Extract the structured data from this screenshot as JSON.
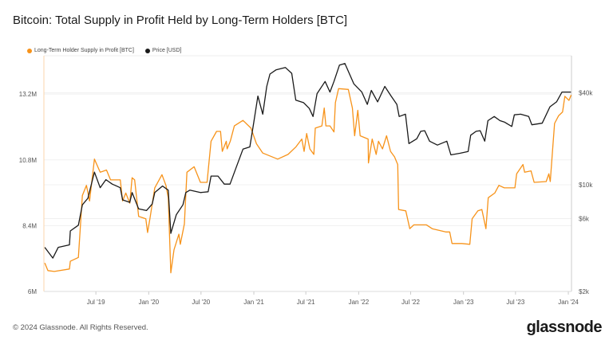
{
  "title": "Bitcoin: Total Supply in Profit Held by Long-Term Holders [BTC]",
  "footer": "© 2024 Glassnode. All Rights Reserved.",
  "logo_text": "glassnode",
  "chart_data": {
    "type": "line",
    "title": "Bitcoin: Total Supply in Profit Held by Long-Term Holders [BTC]",
    "legend_position": "top-left",
    "grid": true,
    "x_range": [
      "2019-01-01",
      "2024-01-12"
    ],
    "x_ticks": [
      {
        "date": "2019-07-01",
        "label": "Jul '19"
      },
      {
        "date": "2020-01-01",
        "label": "Jan '20"
      },
      {
        "date": "2020-07-01",
        "label": "Jul '20"
      },
      {
        "date": "2021-01-01",
        "label": "Jan '21"
      },
      {
        "date": "2021-07-01",
        "label": "Jul '21"
      },
      {
        "date": "2022-01-01",
        "label": "Jan '22"
      },
      {
        "date": "2022-07-01",
        "label": "Jul '22"
      },
      {
        "date": "2023-01-01",
        "label": "Jan '23"
      },
      {
        "date": "2023-07-01",
        "label": "Jul '23"
      },
      {
        "date": "2024-01-01",
        "label": "Jan '24"
      }
    ],
    "y_left": {
      "scale": "linear",
      "range": [
        6000000,
        14600000
      ],
      "ticks": [
        {
          "value": 6000000,
          "label": "6M"
        },
        {
          "value": 8400000,
          "label": "8.4M"
        },
        {
          "value": 10800000,
          "label": "10.8M"
        },
        {
          "value": 13200000,
          "label": "13.2M"
        }
      ]
    },
    "y_right": {
      "scale": "log",
      "range": [
        2000,
        70000
      ],
      "ticks": [
        {
          "value": 2000,
          "label": "$2k"
        },
        {
          "value": 6000,
          "label": "$6k"
        },
        {
          "value": 10000,
          "label": "$10k"
        },
        {
          "value": 40000,
          "label": "$40k"
        }
      ]
    },
    "series": [
      {
        "name": "Long-Term Holder Supply in Profit [BTC]",
        "axis": "left",
        "color": "#f7931a",
        "points": [
          [
            "2019-01-04",
            7.04
          ],
          [
            "2019-01-15",
            6.76
          ],
          [
            "2019-02-06",
            6.73
          ],
          [
            "2019-03-31",
            6.82
          ],
          [
            "2019-04-03",
            7.1
          ],
          [
            "2019-05-01",
            7.24
          ],
          [
            "2019-05-15",
            9.5
          ],
          [
            "2019-05-29",
            9.87
          ],
          [
            "2019-06-09",
            9.3
          ],
          [
            "2019-06-26",
            10.83
          ],
          [
            "2019-07-16",
            10.35
          ],
          [
            "2019-08-07",
            10.43
          ],
          [
            "2019-08-21",
            10.07
          ],
          [
            "2019-09-24",
            10.07
          ],
          [
            "2019-10-02",
            9.3
          ],
          [
            "2019-10-13",
            9.59
          ],
          [
            "2019-10-27",
            9.22
          ],
          [
            "2019-11-04",
            10.15
          ],
          [
            "2019-11-13",
            10.07
          ],
          [
            "2019-11-27",
            8.74
          ],
          [
            "2019-12-22",
            8.65
          ],
          [
            "2019-12-28",
            8.15
          ],
          [
            "2020-01-05",
            8.65
          ],
          [
            "2020-01-22",
            9.78
          ],
          [
            "2020-02-16",
            10.26
          ],
          [
            "2020-03-01",
            9.87
          ],
          [
            "2020-03-09",
            9.42
          ],
          [
            "2020-03-18",
            6.68
          ],
          [
            "2020-03-29",
            7.52
          ],
          [
            "2020-04-15",
            8.09
          ],
          [
            "2020-04-20",
            7.72
          ],
          [
            "2020-05-04",
            8.46
          ],
          [
            "2020-05-13",
            10.35
          ],
          [
            "2020-06-07",
            10.55
          ],
          [
            "2020-06-29",
            9.98
          ],
          [
            "2020-07-22",
            9.98
          ],
          [
            "2020-08-05",
            11.48
          ],
          [
            "2020-08-24",
            11.84
          ],
          [
            "2020-09-07",
            11.84
          ],
          [
            "2020-09-13",
            11.11
          ],
          [
            "2020-09-27",
            11.48
          ],
          [
            "2020-09-30",
            11.2
          ],
          [
            "2020-10-11",
            11.48
          ],
          [
            "2020-10-25",
            12.04
          ],
          [
            "2020-11-24",
            12.24
          ],
          [
            "2020-12-22",
            11.96
          ],
          [
            "2021-01-10",
            11.39
          ],
          [
            "2021-02-01",
            11.05
          ],
          [
            "2021-03-25",
            10.83
          ],
          [
            "2021-04-30",
            11.0
          ],
          [
            "2021-05-28",
            11.28
          ],
          [
            "2021-06-17",
            11.56
          ],
          [
            "2021-06-25",
            11.11
          ],
          [
            "2021-07-04",
            11.76
          ],
          [
            "2021-07-15",
            11.2
          ],
          [
            "2021-07-29",
            11.0
          ],
          [
            "2021-08-03",
            11.96
          ],
          [
            "2021-08-26",
            12.04
          ],
          [
            "2021-09-03",
            12.69
          ],
          [
            "2021-09-09",
            12.04
          ],
          [
            "2021-09-23",
            12.04
          ],
          [
            "2021-10-07",
            11.82
          ],
          [
            "2021-10-12",
            12.89
          ],
          [
            "2021-10-23",
            13.4
          ],
          [
            "2021-11-26",
            13.37
          ],
          [
            "2021-12-10",
            12.69
          ],
          [
            "2021-12-18",
            11.68
          ],
          [
            "2021-12-29",
            12.61
          ],
          [
            "2022-01-06",
            11.68
          ],
          [
            "2022-02-03",
            11.56
          ],
          [
            "2022-02-04",
            10.69
          ],
          [
            "2022-02-17",
            11.56
          ],
          [
            "2022-03-03",
            11.0
          ],
          [
            "2022-03-11",
            11.48
          ],
          [
            "2022-03-25",
            11.2
          ],
          [
            "2022-04-08",
            11.68
          ],
          [
            "2022-04-22",
            11.11
          ],
          [
            "2022-05-06",
            10.91
          ],
          [
            "2022-05-17",
            10.63
          ],
          [
            "2022-05-20",
            8.99
          ],
          [
            "2022-06-14",
            8.94
          ],
          [
            "2022-06-28",
            8.29
          ],
          [
            "2022-07-12",
            8.43
          ],
          [
            "2022-08-25",
            8.43
          ],
          [
            "2022-09-14",
            8.29
          ],
          [
            "2022-10-31",
            8.17
          ],
          [
            "2022-11-14",
            8.17
          ],
          [
            "2022-11-22",
            7.75
          ],
          [
            "2022-12-26",
            7.75
          ],
          [
            "2023-01-23",
            7.72
          ],
          [
            "2023-01-31",
            8.65
          ],
          [
            "2023-02-20",
            8.94
          ],
          [
            "2023-03-06",
            8.99
          ],
          [
            "2023-03-20",
            8.29
          ],
          [
            "2023-03-28",
            9.42
          ],
          [
            "2023-04-20",
            9.59
          ],
          [
            "2023-05-04",
            9.87
          ],
          [
            "2023-05-23",
            9.78
          ],
          [
            "2023-06-29",
            9.78
          ],
          [
            "2023-07-05",
            10.29
          ],
          [
            "2023-07-27",
            10.63
          ],
          [
            "2023-08-02",
            10.35
          ],
          [
            "2023-08-24",
            10.4
          ],
          [
            "2023-09-04",
            9.98
          ],
          [
            "2023-10-16",
            10.01
          ],
          [
            "2023-10-25",
            10.29
          ],
          [
            "2023-10-30",
            10.01
          ],
          [
            "2023-11-08",
            11.28
          ],
          [
            "2023-11-14",
            12.13
          ],
          [
            "2023-11-28",
            12.41
          ],
          [
            "2023-12-12",
            12.55
          ],
          [
            "2023-12-20",
            13.12
          ],
          [
            "2024-01-03",
            12.97
          ],
          [
            "2024-01-11",
            13.17
          ]
        ],
        "unit": "M BTC"
      },
      {
        "name": "Price [USD]",
        "axis": "right",
        "color": "#1a1a1a",
        "points": [
          [
            "2019-01-04",
            3890
          ],
          [
            "2019-02-01",
            3310
          ],
          [
            "2019-02-20",
            3890
          ],
          [
            "2019-03-31",
            4040
          ],
          [
            "2019-04-03",
            4980
          ],
          [
            "2019-05-01",
            5430
          ],
          [
            "2019-05-15",
            7390
          ],
          [
            "2019-06-03",
            8150
          ],
          [
            "2019-06-26",
            12100
          ],
          [
            "2019-07-16",
            9570
          ],
          [
            "2019-08-05",
            10800
          ],
          [
            "2019-08-27",
            10100
          ],
          [
            "2019-09-24",
            9570
          ],
          [
            "2019-10-02",
            7960
          ],
          [
            "2019-10-27",
            7670
          ],
          [
            "2019-11-04",
            8890
          ],
          [
            "2019-11-27",
            6950
          ],
          [
            "2019-12-24",
            6780
          ],
          [
            "2020-01-13",
            7480
          ],
          [
            "2020-01-22",
            8890
          ],
          [
            "2020-02-18",
            9810
          ],
          [
            "2020-03-09",
            9220
          ],
          [
            "2020-03-18",
            4800
          ],
          [
            "2020-04-06",
            6370
          ],
          [
            "2020-04-29",
            7390
          ],
          [
            "2020-05-09",
            8890
          ],
          [
            "2020-05-23",
            9220
          ],
          [
            "2020-06-29",
            8890
          ],
          [
            "2020-07-26",
            9000
          ],
          [
            "2020-08-05",
            11400
          ],
          [
            "2020-08-29",
            11400
          ],
          [
            "2020-09-20",
            10100
          ],
          [
            "2020-10-10",
            10100
          ],
          [
            "2020-10-31",
            12900
          ],
          [
            "2020-11-24",
            17100
          ],
          [
            "2020-12-18",
            17700
          ],
          [
            "2021-01-01",
            25700
          ],
          [
            "2021-01-15",
            38100
          ],
          [
            "2021-02-01",
            29000
          ],
          [
            "2021-02-15",
            44100
          ],
          [
            "2021-02-26",
            53100
          ],
          [
            "2021-03-19",
            56500
          ],
          [
            "2021-04-21",
            58600
          ],
          [
            "2021-05-13",
            53700
          ],
          [
            "2021-05-27",
            35800
          ],
          [
            "2021-06-23",
            34500
          ],
          [
            "2021-07-13",
            31600
          ],
          [
            "2021-07-26",
            28000
          ],
          [
            "2021-08-09",
            39500
          ],
          [
            "2021-09-06",
            47500
          ],
          [
            "2021-09-23",
            40500
          ],
          [
            "2021-10-07",
            47500
          ],
          [
            "2021-10-26",
            60800
          ],
          [
            "2021-11-14",
            62300
          ],
          [
            "2021-12-15",
            45800
          ],
          [
            "2022-01-12",
            40500
          ],
          [
            "2022-01-31",
            33600
          ],
          [
            "2022-02-14",
            41500
          ],
          [
            "2022-03-08",
            34900
          ],
          [
            "2022-04-02",
            44100
          ],
          [
            "2022-04-24",
            38100
          ],
          [
            "2022-05-14",
            33600
          ],
          [
            "2022-05-22",
            28000
          ],
          [
            "2022-06-13",
            29000
          ],
          [
            "2022-06-25",
            18600
          ],
          [
            "2022-07-22",
            20000
          ],
          [
            "2022-08-05",
            22400
          ],
          [
            "2022-08-19",
            22600
          ],
          [
            "2022-09-05",
            19300
          ],
          [
            "2022-10-02",
            18200
          ],
          [
            "2022-11-04",
            19300
          ],
          [
            "2022-11-18",
            15700
          ],
          [
            "2022-12-21",
            16100
          ],
          [
            "2023-01-17",
            16500
          ],
          [
            "2023-01-26",
            21100
          ],
          [
            "2023-02-14",
            22400
          ],
          [
            "2023-02-28",
            22600
          ],
          [
            "2023-03-16",
            19300
          ],
          [
            "2023-03-27",
            26300
          ],
          [
            "2023-04-18",
            28000
          ],
          [
            "2023-05-08",
            26300
          ],
          [
            "2023-05-24",
            25700
          ],
          [
            "2023-06-18",
            24100
          ],
          [
            "2023-06-27",
            28700
          ],
          [
            "2023-07-19",
            29000
          ],
          [
            "2023-08-16",
            28000
          ],
          [
            "2023-08-27",
            24700
          ],
          [
            "2023-10-02",
            25300
          ],
          [
            "2023-10-29",
            32400
          ],
          [
            "2023-11-21",
            34900
          ],
          [
            "2023-12-10",
            40500
          ],
          [
            "2024-01-10",
            40500
          ]
        ],
        "unit": "USD"
      }
    ]
  }
}
